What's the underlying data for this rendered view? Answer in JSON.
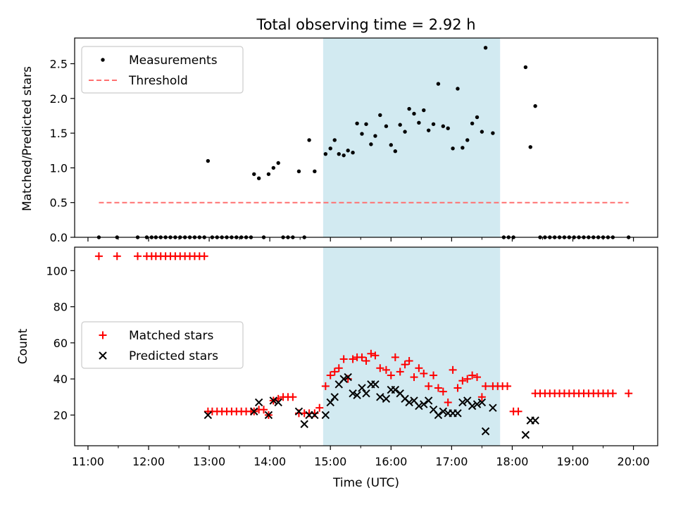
{
  "chart_data": [
    {
      "type": "scatter",
      "title": "Total observing time = 2.92 h",
      "ylabel": "Matched/Predicted stars",
      "xlabel": "",
      "xlim_hours": [
        10.78,
        20.4
      ],
      "ylim": [
        0,
        2.87
      ],
      "yticks": [
        "0.0",
        "0.5",
        "1.0",
        "1.5",
        "2.0",
        "2.5"
      ],
      "grid": false,
      "legend_position": "upper-left",
      "highlight_span_hours": [
        14.88,
        17.8
      ],
      "highlight_color": "#add8e6",
      "series": [
        {
          "name": "Measurements",
          "marker": "dot",
          "color": "#000000",
          "points": [
            [
              11.18,
              0
            ],
            [
              11.48,
              0
            ],
            [
              11.82,
              0
            ],
            [
              11.97,
              0
            ],
            [
              12.05,
              0
            ],
            [
              12.12,
              0
            ],
            [
              12.2,
              0
            ],
            [
              12.28,
              0
            ],
            [
              12.36,
              0
            ],
            [
              12.44,
              0
            ],
            [
              12.52,
              0
            ],
            [
              12.6,
              0
            ],
            [
              12.68,
              0
            ],
            [
              12.76,
              0
            ],
            [
              12.84,
              0
            ],
            [
              12.92,
              0
            ],
            [
              12.98,
              1.1
            ],
            [
              13.05,
              0
            ],
            [
              13.13,
              0
            ],
            [
              13.21,
              0
            ],
            [
              13.29,
              0
            ],
            [
              13.37,
              0
            ],
            [
              13.45,
              0
            ],
            [
              13.53,
              0
            ],
            [
              13.61,
              0
            ],
            [
              13.69,
              0
            ],
            [
              13.74,
              0.91
            ],
            [
              13.82,
              0.85
            ],
            [
              13.9,
              0
            ],
            [
              13.98,
              0.91
            ],
            [
              14.06,
              1.0
            ],
            [
              14.14,
              1.07
            ],
            [
              14.22,
              0
            ],
            [
              14.3,
              0
            ],
            [
              14.38,
              0
            ],
            [
              14.48,
              0.95
            ],
            [
              14.57,
              0
            ],
            [
              14.65,
              1.4
            ],
            [
              14.74,
              0.95
            ],
            [
              14.92,
              1.2
            ],
            [
              15.0,
              1.28
            ],
            [
              15.07,
              1.4
            ],
            [
              15.14,
              1.2
            ],
            [
              15.22,
              1.18
            ],
            [
              15.29,
              1.25
            ],
            [
              15.37,
              1.22
            ],
            [
              15.44,
              1.64
            ],
            [
              15.52,
              1.49
            ],
            [
              15.59,
              1.63
            ],
            [
              15.67,
              1.34
            ],
            [
              15.74,
              1.46
            ],
            [
              15.82,
              1.76
            ],
            [
              15.92,
              1.6
            ],
            [
              16.0,
              1.33
            ],
            [
              16.07,
              1.24
            ],
            [
              16.15,
              1.62
            ],
            [
              16.23,
              1.52
            ],
            [
              16.3,
              1.85
            ],
            [
              16.38,
              1.78
            ],
            [
              16.46,
              1.65
            ],
            [
              16.54,
              1.83
            ],
            [
              16.62,
              1.54
            ],
            [
              16.7,
              1.63
            ],
            [
              16.78,
              2.21
            ],
            [
              16.86,
              1.6
            ],
            [
              16.94,
              1.57
            ],
            [
              17.02,
              1.28
            ],
            [
              17.1,
              2.14
            ],
            [
              17.18,
              1.29
            ],
            [
              17.26,
              1.4
            ],
            [
              17.34,
              1.64
            ],
            [
              17.42,
              1.73
            ],
            [
              17.5,
              1.52
            ],
            [
              17.56,
              2.73
            ],
            [
              17.68,
              1.5
            ],
            [
              17.86,
              0
            ],
            [
              17.94,
              0
            ],
            [
              18.02,
              0
            ],
            [
              18.22,
              2.45
            ],
            [
              18.3,
              1.3
            ],
            [
              18.38,
              1.89
            ],
            [
              18.46,
              0
            ],
            [
              18.54,
              0
            ],
            [
              18.62,
              0
            ],
            [
              18.7,
              0
            ],
            [
              18.78,
              0
            ],
            [
              18.86,
              0
            ],
            [
              18.94,
              0
            ],
            [
              19.02,
              0
            ],
            [
              19.1,
              0
            ],
            [
              19.18,
              0
            ],
            [
              19.26,
              0
            ],
            [
              19.34,
              0
            ],
            [
              19.42,
              0
            ],
            [
              19.5,
              0
            ],
            [
              19.58,
              0
            ],
            [
              19.66,
              0
            ],
            [
              19.92,
              0
            ]
          ]
        },
        {
          "name": "Threshold",
          "marker": "dashed-line",
          "color": "#ff7070",
          "points": [
            [
              11.18,
              0.5
            ],
            [
              19.92,
              0.5
            ]
          ]
        }
      ]
    },
    {
      "type": "scatter",
      "title": "",
      "ylabel": "Count",
      "xlabel": "Time (UTC)",
      "xlim_hours": [
        10.78,
        20.4
      ],
      "ylim": [
        3,
        113
      ],
      "yticks": [
        "20",
        "40",
        "60",
        "80",
        "100"
      ],
      "xticks": [
        "11:00",
        "12:00",
        "13:00",
        "14:00",
        "15:00",
        "16:00",
        "17:00",
        "18:00",
        "19:00",
        "20:00"
      ],
      "grid": false,
      "legend_position": "center-left",
      "highlight_span_hours": [
        14.88,
        17.8
      ],
      "highlight_color": "#add8e6",
      "series": [
        {
          "name": "Matched stars",
          "marker": "plus",
          "color": "#ff0000",
          "points": [
            [
              11.18,
              108
            ],
            [
              11.48,
              108
            ],
            [
              11.82,
              108
            ],
            [
              11.97,
              108
            ],
            [
              12.05,
              108
            ],
            [
              12.12,
              108
            ],
            [
              12.2,
              108
            ],
            [
              12.28,
              108
            ],
            [
              12.36,
              108
            ],
            [
              12.44,
              108
            ],
            [
              12.52,
              108
            ],
            [
              12.6,
              108
            ],
            [
              12.68,
              108
            ],
            [
              12.76,
              108
            ],
            [
              12.84,
              108
            ],
            [
              12.92,
              108
            ],
            [
              12.98,
              22
            ],
            [
              13.05,
              22
            ],
            [
              13.13,
              22
            ],
            [
              13.21,
              22
            ],
            [
              13.29,
              22
            ],
            [
              13.37,
              22
            ],
            [
              13.45,
              22
            ],
            [
              13.53,
              22
            ],
            [
              13.61,
              22
            ],
            [
              13.69,
              22
            ],
            [
              13.74,
              22
            ],
            [
              13.82,
              23
            ],
            [
              13.9,
              23
            ],
            [
              13.98,
              20
            ],
            [
              14.06,
              28
            ],
            [
              14.14,
              29
            ],
            [
              14.22,
              30
            ],
            [
              14.3,
              30
            ],
            [
              14.38,
              30
            ],
            [
              14.48,
              21
            ],
            [
              14.57,
              21
            ],
            [
              14.65,
              21
            ],
            [
              14.74,
              21
            ],
            [
              14.82,
              24
            ],
            [
              14.92,
              36
            ],
            [
              15.0,
              42
            ],
            [
              15.07,
              44
            ],
            [
              15.14,
              46
            ],
            [
              15.22,
              51
            ],
            [
              15.29,
              40
            ],
            [
              15.37,
              51
            ],
            [
              15.44,
              52
            ],
            [
              15.52,
              52
            ],
            [
              15.59,
              50
            ],
            [
              15.67,
              54
            ],
            [
              15.74,
              53
            ],
            [
              15.82,
              46
            ],
            [
              15.92,
              45
            ],
            [
              16.0,
              42
            ],
            [
              16.07,
              52
            ],
            [
              16.15,
              44
            ],
            [
              16.23,
              48
            ],
            [
              16.3,
              50
            ],
            [
              16.38,
              41
            ],
            [
              16.46,
              46
            ],
            [
              16.54,
              43
            ],
            [
              16.62,
              36
            ],
            [
              16.7,
              42
            ],
            [
              16.78,
              35
            ],
            [
              16.86,
              33
            ],
            [
              16.94,
              27
            ],
            [
              17.02,
              45
            ],
            [
              17.1,
              35
            ],
            [
              17.18,
              39
            ],
            [
              17.26,
              40
            ],
            [
              17.34,
              42
            ],
            [
              17.42,
              41
            ],
            [
              17.5,
              30
            ],
            [
              17.56,
              36
            ],
            [
              17.68,
              36
            ],
            [
              17.76,
              36
            ],
            [
              17.84,
              36
            ],
            [
              17.92,
              36
            ],
            [
              18.02,
              22
            ],
            [
              18.1,
              22
            ],
            [
              18.38,
              32
            ],
            [
              18.46,
              32
            ],
            [
              18.54,
              32
            ],
            [
              18.62,
              32
            ],
            [
              18.7,
              32
            ],
            [
              18.78,
              32
            ],
            [
              18.86,
              32
            ],
            [
              18.94,
              32
            ],
            [
              19.02,
              32
            ],
            [
              19.1,
              32
            ],
            [
              19.18,
              32
            ],
            [
              19.26,
              32
            ],
            [
              19.34,
              32
            ],
            [
              19.42,
              32
            ],
            [
              19.5,
              32
            ],
            [
              19.58,
              32
            ],
            [
              19.66,
              32
            ],
            [
              19.92,
              32
            ]
          ]
        },
        {
          "name": "Predicted stars",
          "marker": "x",
          "color": "#000000",
          "points": [
            [
              12.98,
              20
            ],
            [
              13.74,
              22
            ],
            [
              13.82,
              27
            ],
            [
              13.98,
              20
            ],
            [
              14.06,
              28
            ],
            [
              14.14,
              27
            ],
            [
              14.48,
              22
            ],
            [
              14.57,
              15
            ],
            [
              14.65,
              20
            ],
            [
              14.74,
              20
            ],
            [
              14.92,
              20
            ],
            [
              15.0,
              27
            ],
            [
              15.07,
              30
            ],
            [
              15.14,
              37
            ],
            [
              15.22,
              40
            ],
            [
              15.29,
              41
            ],
            [
              15.37,
              32
            ],
            [
              15.44,
              31
            ],
            [
              15.52,
              35
            ],
            [
              15.59,
              32
            ],
            [
              15.67,
              37
            ],
            [
              15.74,
              37
            ],
            [
              15.82,
              30
            ],
            [
              15.92,
              29
            ],
            [
              16.0,
              34
            ],
            [
              16.07,
              34
            ],
            [
              16.15,
              32
            ],
            [
              16.23,
              29
            ],
            [
              16.3,
              27
            ],
            [
              16.38,
              28
            ],
            [
              16.46,
              25
            ],
            [
              16.54,
              26
            ],
            [
              16.62,
              28
            ],
            [
              16.7,
              23
            ],
            [
              16.78,
              20
            ],
            [
              16.86,
              22
            ],
            [
              16.94,
              21
            ],
            [
              17.02,
              21
            ],
            [
              17.1,
              21
            ],
            [
              17.18,
              27
            ],
            [
              17.26,
              28
            ],
            [
              17.34,
              25
            ],
            [
              17.42,
              26
            ],
            [
              17.5,
              27
            ],
            [
              17.56,
              11
            ],
            [
              17.68,
              24
            ],
            [
              18.22,
              9
            ],
            [
              18.3,
              17
            ],
            [
              18.38,
              17
            ]
          ]
        }
      ]
    }
  ]
}
